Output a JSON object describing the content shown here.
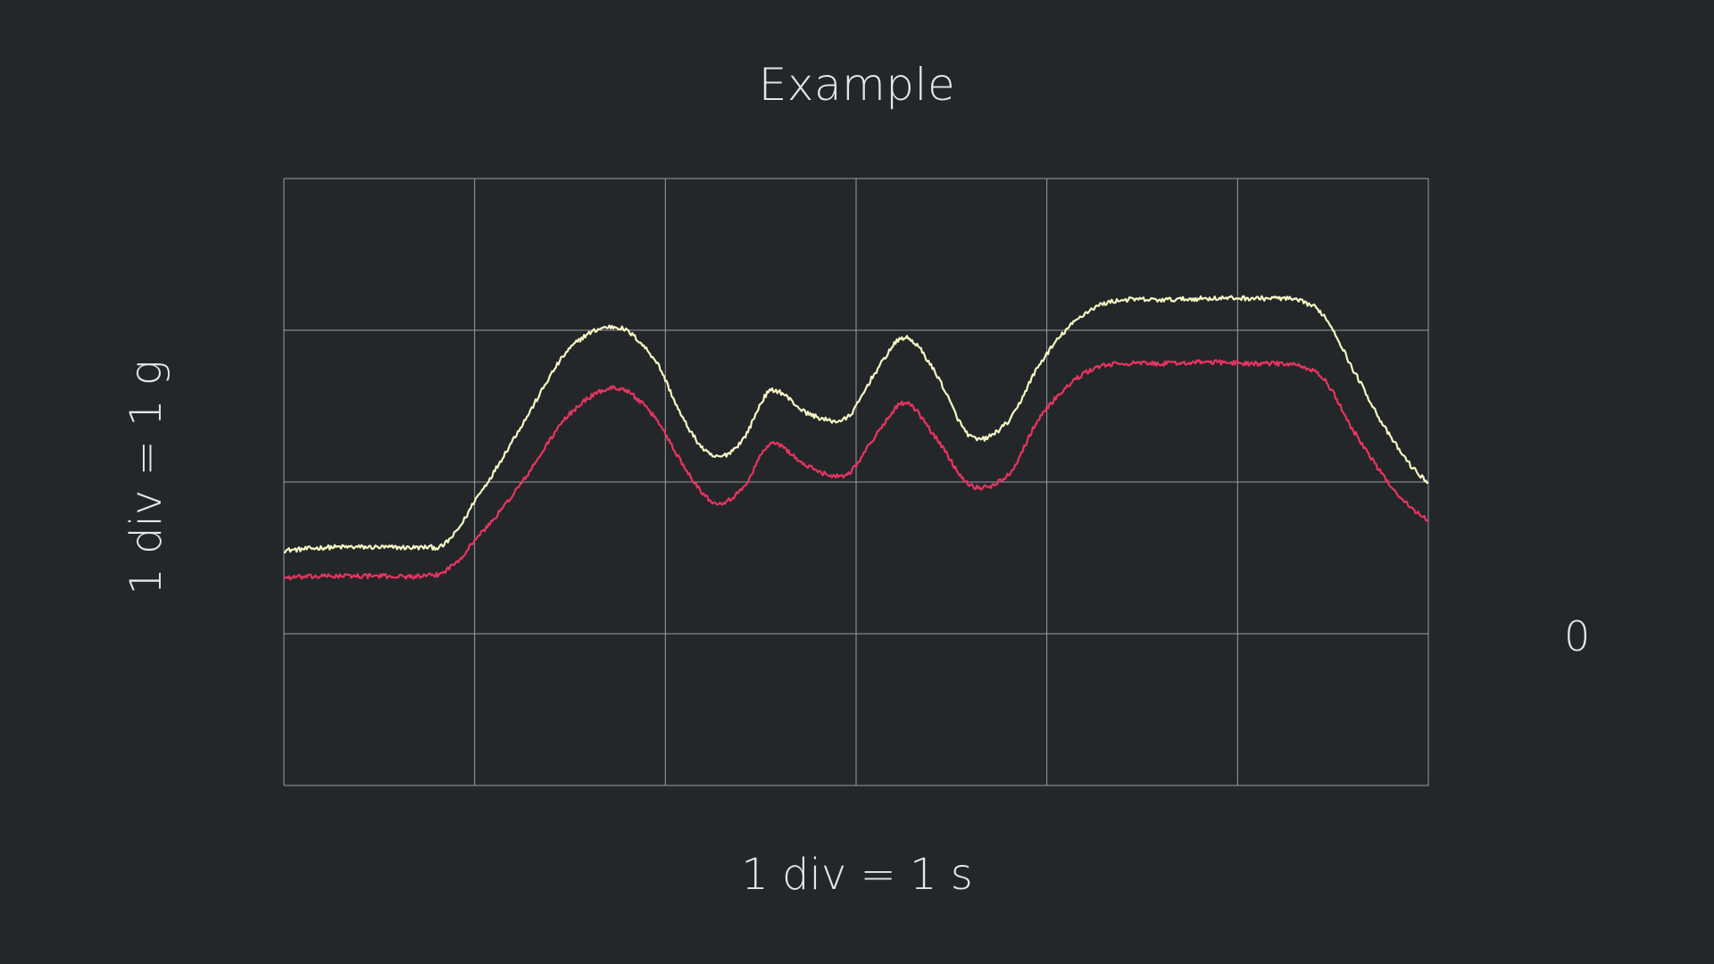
{
  "chart_data": {
    "type": "line",
    "title": "Example",
    "xlabel": "1 div = 1 s",
    "ylabel": "1 div = 1 g",
    "y_zero_label": "0",
    "xlim": [
      0,
      6
    ],
    "ylim": [
      -1,
      3
    ],
    "x_divisions": 6,
    "y_divisions": 4,
    "grid": true,
    "legend": "none",
    "colors": {
      "background": "#23272a",
      "grid": "#9a9ea2",
      "text": "#e6e6e6"
    },
    "series": [
      {
        "color": "#f7f5c2",
        "x": [
          0,
          0.25,
          0.5,
          0.75,
          0.85,
          1.0,
          1.25,
          1.5,
          1.75,
          1.95,
          2.1,
          2.25,
          2.4,
          2.55,
          2.75,
          2.95,
          3.1,
          3.25,
          3.4,
          3.6,
          3.8,
          3.95,
          4.1,
          4.25,
          4.4,
          4.6,
          4.85,
          5.1,
          5.3,
          5.45,
          5.6,
          5.8,
          6.0
        ],
        "y": [
          0.55,
          0.57,
          0.57,
          0.57,
          0.6,
          0.88,
          1.38,
          1.88,
          2.02,
          1.8,
          1.4,
          1.17,
          1.27,
          1.6,
          1.45,
          1.42,
          1.72,
          1.95,
          1.75,
          1.3,
          1.4,
          1.75,
          2.0,
          2.15,
          2.2,
          2.2,
          2.21,
          2.21,
          2.2,
          2.1,
          1.75,
          1.3,
          1.0
        ]
      },
      {
        "color": "#e8345f",
        "x": [
          0,
          0.25,
          0.5,
          0.75,
          0.85,
          1.0,
          1.25,
          1.5,
          1.75,
          1.95,
          2.1,
          2.25,
          2.4,
          2.55,
          2.75,
          2.95,
          3.1,
          3.25,
          3.4,
          3.6,
          3.8,
          3.95,
          4.1,
          4.25,
          4.4,
          4.6,
          4.85,
          5.1,
          5.3,
          5.45,
          5.6,
          5.8,
          6.0
        ],
        "y": [
          0.37,
          0.38,
          0.38,
          0.38,
          0.42,
          0.62,
          1.0,
          1.45,
          1.62,
          1.42,
          1.1,
          0.87,
          0.95,
          1.25,
          1.1,
          1.05,
          1.3,
          1.52,
          1.32,
          0.98,
          1.05,
          1.4,
          1.62,
          1.75,
          1.78,
          1.78,
          1.79,
          1.78,
          1.77,
          1.68,
          1.35,
          0.98,
          0.75
        ]
      }
    ]
  }
}
